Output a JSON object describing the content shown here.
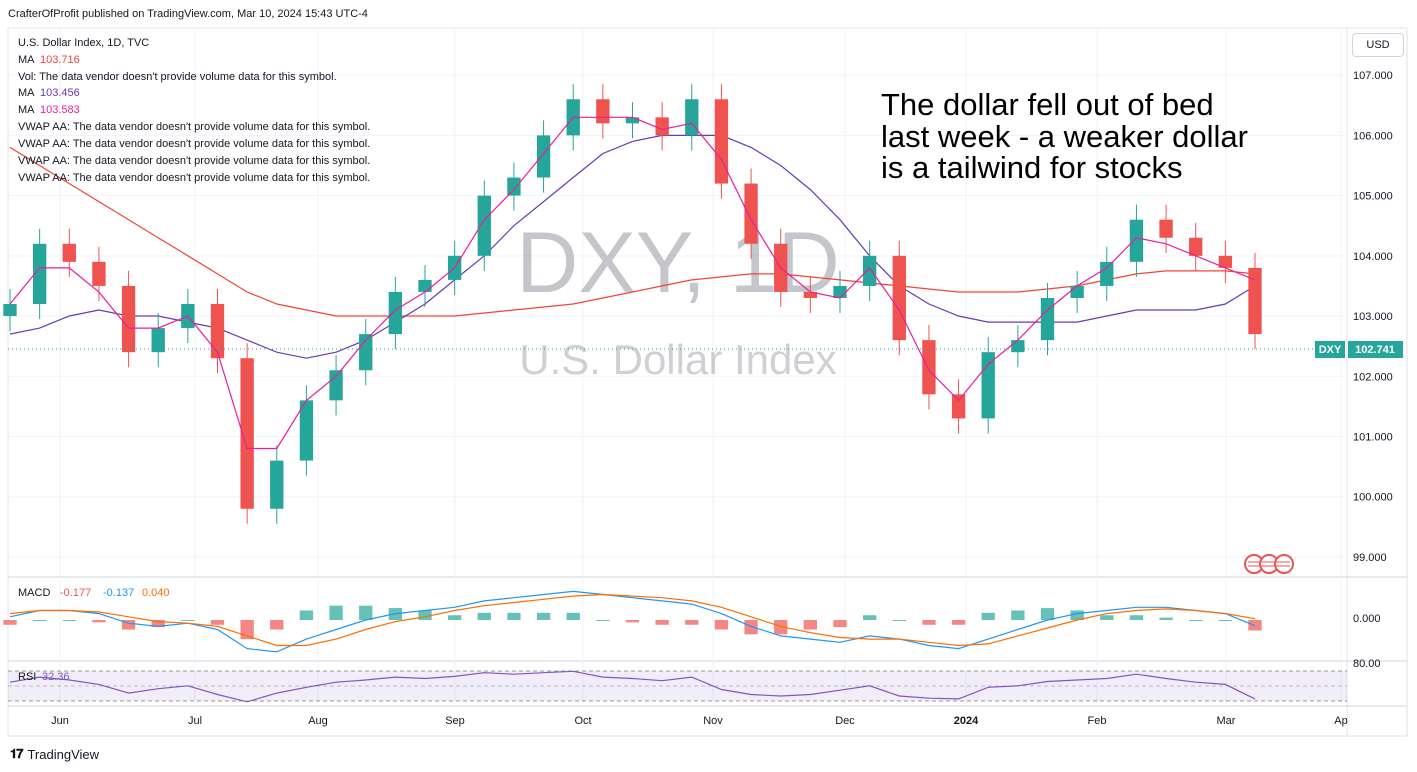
{
  "publisher_line": "CrafterOfProfit published on TradingView.com, Mar 10, 2024 15:43 UTC-4",
  "legend": {
    "symbol": "U.S. Dollar Index, 1D, TVC",
    "ma1_label": "MA",
    "ma1_value": "103.716",
    "vol_label": "Vol: The data vendor doesn't provide volume data for this symbol.",
    "ma2_label": "MA",
    "ma2_value": "103.456",
    "ma3_label": "MA",
    "ma3_value": "103.583",
    "vwap_lines": [
      "VWAP AA: The data vendor doesn't provide volume data for this symbol.",
      "VWAP AA: The data vendor doesn't provide volume data for this symbol.",
      "VWAP AA: The data vendor doesn't provide volume data for this symbol.",
      "VWAP AA: The data vendor doesn't provide volume data for this symbol."
    ]
  },
  "watermark": {
    "ticker": "DXY, 1D",
    "name": "U.S. Dollar Index"
  },
  "annotation": [
    "The dollar fell out of bed",
    "last week - a weaker dollar",
    "is a tailwind for stocks"
  ],
  "currency_button": "USD",
  "price_tag": {
    "symbol": "DXY",
    "value": "102.741"
  },
  "macd_legend": {
    "label": "MACD",
    "v1": "-0.177",
    "v2": "-0.137",
    "v3": "0.040"
  },
  "rsi_legend": {
    "label": "RSI",
    "value": "32.36"
  },
  "rsi_axis_label": "80.00",
  "brand": "TradingView",
  "colors": {
    "up": "#26a69a",
    "down": "#ef5350",
    "ma_fast": "#e91e9c",
    "ma_mid": "#673ab7",
    "ma_slow": "#f44336",
    "macd": "#2196f3",
    "signal": "#ff6d00",
    "rsi": "#7e57c2"
  },
  "chart_data": {
    "type": "line",
    "title": "U.S. Dollar Index, 1D, TVC",
    "y_ticks": [
      99.0,
      100.0,
      101.0,
      102.0,
      103.0,
      104.0,
      105.0,
      106.0,
      107.0
    ],
    "y_tick_labels": [
      "99.000",
      "100.000",
      "101.000",
      "102.000",
      "103.000",
      "104.000",
      "105.000",
      "106.000",
      "107.000"
    ],
    "ylim": [
      98.7,
      107.75
    ],
    "x_labels": [
      "Jun",
      "Jul",
      "Aug",
      "Sep",
      "Oct",
      "Nov",
      "Dec",
      "2024",
      "Feb",
      "Mar",
      "Ap"
    ],
    "grid": true,
    "series": [
      {
        "name": "U.S. Dollar Index",
        "x": [
          "May 19",
          "May 26",
          "Jun 2",
          "Jun 9",
          "Jun 16",
          "Jun 23",
          "Jun 30",
          "Jul 7",
          "Jul 14",
          "Jul 21",
          "Jul 28",
          "Aug 4",
          "Aug 11",
          "Aug 18",
          "Aug 25",
          "Sep 1",
          "Sep 8",
          "Sep 15",
          "Sep 22",
          "Sep 29",
          "Oct 6",
          "Oct 13",
          "Oct 20",
          "Oct 27",
          "Nov 3",
          "Nov 10",
          "Nov 17",
          "Nov 24",
          "Dec 1",
          "Dec 8",
          "Dec 15",
          "Dec 22",
          "Dec 29",
          "Jan 5",
          "Jan 12",
          "Jan 19",
          "Jan 26",
          "Feb 2",
          "Feb 9",
          "Feb 16",
          "Feb 23",
          "Mar 1",
          "Mar 8"
        ],
        "values": [
          103.2,
          104.2,
          103.9,
          103.5,
          102.4,
          102.8,
          103.2,
          102.3,
          99.8,
          100.6,
          101.6,
          102.1,
          102.7,
          103.4,
          103.6,
          104.0,
          105.0,
          105.3,
          106.0,
          106.6,
          106.2,
          106.3,
          106.0,
          106.6,
          105.2,
          104.2,
          103.4,
          103.3,
          103.5,
          104.0,
          102.6,
          101.7,
          101.3,
          102.4,
          102.6,
          103.3,
          103.5,
          103.9,
          104.6,
          104.3,
          104.0,
          103.8,
          102.7
        ]
      },
      {
        "name": "MA",
        "values": [
          103.2,
          103.8,
          103.8,
          103.4,
          102.8,
          102.8,
          103.0,
          102.4,
          100.8,
          100.8,
          101.6,
          102.0,
          102.6,
          103.1,
          103.4,
          103.8,
          104.6,
          105.1,
          105.7,
          106.3,
          106.3,
          106.3,
          106.1,
          106.2,
          105.6,
          104.6,
          103.8,
          103.4,
          103.3,
          103.8,
          103.1,
          102.1,
          101.6,
          102.2,
          102.6,
          103.1,
          103.5,
          103.8,
          104.3,
          104.2,
          104.0,
          103.8,
          103.6
        ]
      },
      {
        "name": "MA",
        "values": [
          102.7,
          102.8,
          103.0,
          103.1,
          103.0,
          103.0,
          102.9,
          102.8,
          102.6,
          102.4,
          102.3,
          102.4,
          102.6,
          102.9,
          103.2,
          103.6,
          104.0,
          104.5,
          104.9,
          105.3,
          105.7,
          105.9,
          106.0,
          106.0,
          106.0,
          105.8,
          105.5,
          105.1,
          104.6,
          104.0,
          103.5,
          103.2,
          103.0,
          102.9,
          102.9,
          102.9,
          102.9,
          103.0,
          103.1,
          103.1,
          103.1,
          103.2,
          103.5
        ]
      },
      {
        "name": "MA",
        "values": [
          105.8,
          105.5,
          105.2,
          104.9,
          104.6,
          104.3,
          104.0,
          103.7,
          103.4,
          103.2,
          103.1,
          103.0,
          103.0,
          103.0,
          103.0,
          103.0,
          103.05,
          103.1,
          103.15,
          103.2,
          103.3,
          103.4,
          103.5,
          103.6,
          103.65,
          103.7,
          103.7,
          103.65,
          103.6,
          103.55,
          103.5,
          103.45,
          103.4,
          103.4,
          103.4,
          103.45,
          103.5,
          103.6,
          103.7,
          103.75,
          103.75,
          103.75,
          103.7
        ]
      }
    ],
    "macd": {
      "name": "MACD",
      "values": [
        0.1,
        0.3,
        0.3,
        0.2,
        -0.1,
        -0.2,
        -0.1,
        -0.3,
        -0.9,
        -1.0,
        -0.6,
        -0.3,
        0.0,
        0.2,
        0.3,
        0.4,
        0.6,
        0.7,
        0.8,
        0.9,
        0.8,
        0.7,
        0.6,
        0.5,
        0.2,
        -0.2,
        -0.5,
        -0.6,
        -0.7,
        -0.5,
        -0.6,
        -0.8,
        -0.9,
        -0.6,
        -0.3,
        0.0,
        0.2,
        0.3,
        0.4,
        0.4,
        0.3,
        0.2,
        -0.18
      ],
      "signal": [
        0.2,
        0.3,
        0.3,
        0.25,
        0.1,
        -0.05,
        -0.1,
        -0.2,
        -0.5,
        -0.8,
        -0.8,
        -0.6,
        -0.3,
        -0.05,
        0.1,
        0.3,
        0.45,
        0.55,
        0.65,
        0.75,
        0.8,
        0.75,
        0.7,
        0.6,
        0.4,
        0.1,
        -0.2,
        -0.4,
        -0.55,
        -0.6,
        -0.6,
        -0.7,
        -0.8,
        -0.75,
        -0.5,
        -0.25,
        0.0,
        0.2,
        0.3,
        0.35,
        0.3,
        0.2,
        0.04
      ]
    },
    "rsi": {
      "name": "RSI",
      "values": [
        55,
        62,
        58,
        52,
        40,
        46,
        50,
        38,
        28,
        40,
        48,
        55,
        58,
        62,
        60,
        63,
        68,
        66,
        68,
        70,
        62,
        60,
        57,
        62,
        45,
        38,
        36,
        38,
        44,
        50,
        36,
        33,
        32,
        48,
        50,
        56,
        58,
        60,
        66,
        60,
        55,
        52,
        32
      ]
    }
  }
}
